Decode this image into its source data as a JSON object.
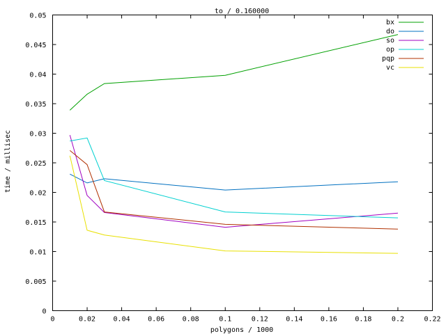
{
  "chart_data": {
    "type": "line",
    "title": "to / 0.160000",
    "xlabel": "polygons / 1000",
    "ylabel": "time / millisec",
    "xlim": [
      0,
      0.22
    ],
    "ylim": [
      0,
      0.05
    ],
    "xticks": [
      0,
      0.02,
      0.04,
      0.06,
      0.08,
      0.1,
      0.12,
      0.14,
      0.16,
      0.18,
      0.2,
      0.22
    ],
    "xtick_labels": [
      "0",
      "0.02",
      "0.04",
      "0.06",
      "0.08",
      "0.1",
      "0.12",
      "0.14",
      "0.16",
      "0.18",
      "0.2",
      "0.22"
    ],
    "yticks": [
      0,
      0.005,
      0.01,
      0.015,
      0.02,
      0.025,
      0.03,
      0.035,
      0.04,
      0.045,
      0.05
    ],
    "ytick_labels": [
      "0",
      "0.005",
      "0.01",
      "0.015",
      "0.02",
      "0.025",
      "0.03",
      "0.035",
      "0.04",
      "0.045",
      "0.05"
    ],
    "grid": false,
    "legend_position": "top-right",
    "series": [
      {
        "name": "bx",
        "color": "#00a000",
        "x": [
          0.01,
          0.02,
          0.03,
          0.1,
          0.2
        ],
        "y": [
          0.0339,
          0.0366,
          0.0384,
          0.0398,
          0.0467
        ]
      },
      {
        "name": "do",
        "color": "#0070c0",
        "x": [
          0.01,
          0.02,
          0.03,
          0.1,
          0.2
        ],
        "y": [
          0.0231,
          0.0216,
          0.0223,
          0.0204,
          0.0218
        ]
      },
      {
        "name": "so",
        "color": "#a000c0",
        "x": [
          0.01,
          0.02,
          0.03,
          0.1,
          0.2
        ],
        "y": [
          0.0297,
          0.0195,
          0.0166,
          0.0141,
          0.0165
        ]
      },
      {
        "name": "op",
        "color": "#00d0d0",
        "x": [
          0.01,
          0.02,
          0.03,
          0.1,
          0.2
        ],
        "y": [
          0.0287,
          0.0292,
          0.022,
          0.0167,
          0.0157
        ]
      },
      {
        "name": "pqp",
        "color": "#b03000",
        "x": [
          0.01,
          0.02,
          0.03,
          0.1,
          0.2
        ],
        "y": [
          0.0271,
          0.0247,
          0.0167,
          0.0146,
          0.0138
        ]
      },
      {
        "name": "vc",
        "color": "#e8e000",
        "x": [
          0.01,
          0.02,
          0.03,
          0.1,
          0.2
        ],
        "y": [
          0.0262,
          0.0136,
          0.0128,
          0.0101,
          0.0097
        ]
      }
    ]
  }
}
